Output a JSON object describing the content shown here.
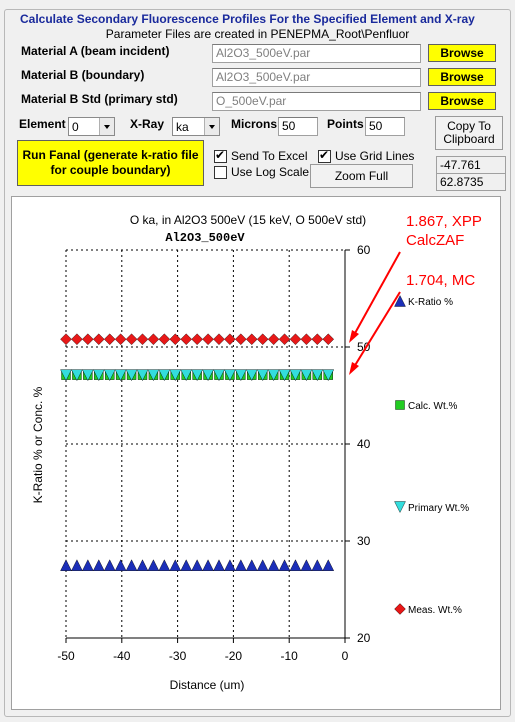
{
  "window": {
    "group_title": "Calculate Secondary Fluorescence Profiles For the Specified Element and X-ray",
    "info_text": "Parameter Files are created in PENEPMA_Root\\Penfluor"
  },
  "materials": [
    {
      "label": "Material A (beam incident)",
      "value": "Al2O3_500eV.par",
      "button": "Browse"
    },
    {
      "label": "Material B (boundary)",
      "value": "Al2O3_500eV.par",
      "button": "Browse"
    },
    {
      "label": "Material B Std (primary std)",
      "value": "O_500eV.par",
      "button": "Browse"
    }
  ],
  "controls": {
    "element_label": "Element",
    "element_value": "0",
    "xray_label": "X-Ray",
    "xray_value": "ka",
    "microns_label": "Microns",
    "microns_value": "50",
    "points_label": "Points",
    "points_value": "50",
    "copy_button": "Copy To Clipboard",
    "run_button": "Run Fanal (generate k-ratio file for couple boundary)",
    "send_excel_label": "Send To Excel",
    "send_excel_checked": true,
    "grid_lines_label": "Use Grid Lines",
    "grid_lines_checked": true,
    "log_scale_label": "Use Log Scale",
    "log_scale_checked": false,
    "zoom_button": "Zoom Full",
    "readout_x": "-47.761",
    "readout_y": "62.8735",
    "check_mark": "✔"
  },
  "annotations": [
    {
      "line1": "1.867, XPP",
      "line2": "CalcZAF"
    },
    {
      "line1": "1.704, MC",
      "line2": ""
    }
  ],
  "colors": {
    "title_blue": "#1a2a9c",
    "annotation_red": "#ff0000",
    "kratio": "#1c2fb8",
    "calc": "#22cc22",
    "primary": "#33dddd",
    "meas": "#e81818"
  },
  "chart_data": {
    "type": "scatter",
    "title": "O ka, in Al2O3 500eV (15 keV, O 500eV std)",
    "subtitle": "Al2O3_500eV",
    "xlabel": "Distance (um)",
    "ylabel": "K-Ratio % or Conc. %",
    "xlim": [
      -50,
      0
    ],
    "ylim": [
      20,
      60
    ],
    "xticks": [
      -50,
      -40,
      -30,
      -20,
      -10,
      0
    ],
    "yticks": [
      20,
      30,
      40,
      50,
      60
    ],
    "grid": true,
    "legend_position": "right",
    "x_start": -50,
    "x_end": -3,
    "points": 25,
    "series": [
      {
        "name": "K-Ratio %",
        "value": 27.5,
        "marker": "triangle-up",
        "color": "#1c2fb8"
      },
      {
        "name": "Calc. Wt.%",
        "value": 47.1,
        "marker": "square",
        "color": "#22cc22"
      },
      {
        "name": "Primary Wt.%",
        "value": 47.1,
        "marker": "triangle-down",
        "color": "#33dddd"
      },
      {
        "name": "Meas. Wt.%",
        "value": 50.8,
        "marker": "diamond",
        "color": "#e81818"
      }
    ]
  }
}
